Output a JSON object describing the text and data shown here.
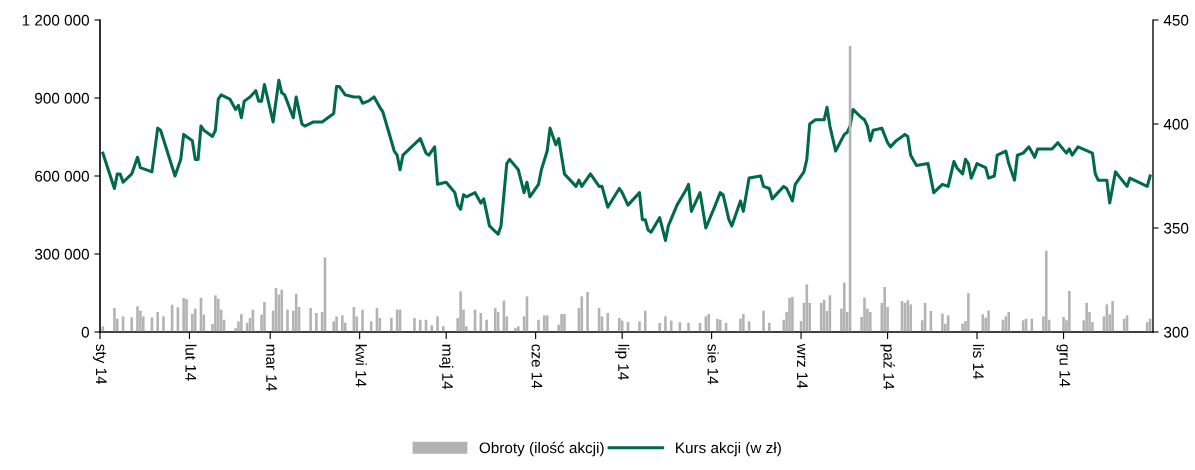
{
  "chart_data": {
    "type": "bar",
    "xlim": [
      "2014-01-01",
      "2015-01-01"
    ],
    "xticks": [
      {
        "value": "2014-01-01",
        "label": "sty 14"
      },
      {
        "value": "2014-02-01",
        "label": "lut 14"
      },
      {
        "value": "2014-03-01",
        "label": "mar 14"
      },
      {
        "value": "2014-04-01",
        "label": "kwi 14"
      },
      {
        "value": "2014-05-01",
        "label": "maj 14"
      },
      {
        "value": "2014-06-01",
        "label": "cze 14"
      },
      {
        "value": "2014-07-01",
        "label": "lip 14"
      },
      {
        "value": "2014-08-01",
        "label": "sie 14"
      },
      {
        "value": "2014-09-01",
        "label": "wrz 14"
      },
      {
        "value": "2014-10-01",
        "label": "paź 14"
      },
      {
        "value": "2014-11-01",
        "label": "lis 14"
      },
      {
        "value": "2014-12-01",
        "label": "gru 14"
      }
    ],
    "ylim": [
      0,
      1200000
    ],
    "yticks": [
      {
        "value": 0,
        "label": "0"
      },
      {
        "value": 300000,
        "label": "300 000"
      },
      {
        "value": 600000,
        "label": "600 000"
      },
      {
        "value": 900000,
        "label": "900 000"
      },
      {
        "value": 1200000,
        "label": "1 200 000"
      }
    ],
    "y2lim": [
      300,
      450
    ],
    "y2ticks": [
      300,
      350,
      400,
      450
    ],
    "legend": "bottom",
    "grid": false,
    "series": [
      {
        "name": "Obroty (ilość akcji)",
        "axis": "y",
        "color": "#b3b3b3",
        "x": [
          "2014-01-02",
          "2014-01-06",
          "2014-01-07",
          "2014-01-09",
          "2014-01-12",
          "2014-01-14",
          "2014-01-15",
          "2014-01-16",
          "2014-01-19",
          "2014-01-21",
          "2014-01-23",
          "2014-01-26",
          "2014-01-28",
          "2014-01-30",
          "2014-01-31",
          "2014-02-02",
          "2014-02-03",
          "2014-02-05",
          "2014-02-06",
          "2014-02-09",
          "2014-02-10",
          "2014-02-11",
          "2014-02-12",
          "2014-02-13",
          "2014-02-17",
          "2014-02-18",
          "2014-02-19",
          "2014-02-21",
          "2014-02-22",
          "2014-02-23",
          "2014-02-26",
          "2014-02-27",
          "2014-03-02",
          "2014-03-03",
          "2014-03-04",
          "2014-03-05",
          "2014-03-07",
          "2014-03-09",
          "2014-03-10",
          "2014-03-11",
          "2014-03-15",
          "2014-03-17",
          "2014-03-19",
          "2014-03-20",
          "2014-03-23",
          "2014-03-24",
          "2014-03-26",
          "2014-03-27",
          "2014-03-30",
          "2014-03-31",
          "2014-04-02",
          "2014-04-05",
          "2014-04-07",
          "2014-04-08",
          "2014-04-12",
          "2014-04-14",
          "2014-04-15",
          "2014-04-20",
          "2014-04-22",
          "2014-04-24",
          "2014-04-26",
          "2014-04-28",
          "2014-04-30",
          "2014-05-05",
          "2014-05-06",
          "2014-05-07",
          "2014-05-08",
          "2014-05-11",
          "2014-05-13",
          "2014-05-15",
          "2014-05-18",
          "2014-05-19",
          "2014-05-21",
          "2014-05-22",
          "2014-05-25",
          "2014-05-26",
          "2014-05-28",
          "2014-05-29",
          "2014-06-02",
          "2014-06-04",
          "2014-06-05",
          "2014-06-09",
          "2014-06-10",
          "2014-06-11",
          "2014-06-16",
          "2014-06-17",
          "2014-06-19",
          "2014-06-23",
          "2014-06-24",
          "2014-06-26",
          "2014-06-30",
          "2014-07-01",
          "2014-07-03",
          "2014-07-07",
          "2014-07-09",
          "2014-07-14",
          "2014-07-16",
          "2014-07-18",
          "2014-07-21",
          "2014-07-24",
          "2014-07-28",
          "2014-07-30",
          "2014-07-31",
          "2014-08-03",
          "2014-08-04",
          "2014-08-06",
          "2014-08-11",
          "2014-08-12",
          "2014-08-14",
          "2014-08-19",
          "2014-08-21",
          "2014-08-26",
          "2014-08-27",
          "2014-08-28",
          "2014-08-29",
          "2014-09-01",
          "2014-09-02",
          "2014-09-03",
          "2014-09-04",
          "2014-09-08",
          "2014-09-09",
          "2014-09-10",
          "2014-09-11",
          "2014-09-15",
          "2014-09-16",
          "2014-09-17",
          "2014-09-18",
          "2014-09-22",
          "2014-09-23",
          "2014-09-24",
          "2014-09-25",
          "2014-09-29",
          "2014-09-30",
          "2014-10-01",
          "2014-10-06",
          "2014-10-07",
          "2014-10-08",
          "2014-10-09",
          "2014-10-13",
          "2014-10-14",
          "2014-10-16",
          "2014-10-20",
          "2014-10-21",
          "2014-10-22",
          "2014-10-27",
          "2014-10-28",
          "2014-10-29",
          "2014-11-03",
          "2014-11-04",
          "2014-11-05",
          "2014-11-10",
          "2014-11-11",
          "2014-11-12",
          "2014-11-17",
          "2014-11-18",
          "2014-11-20",
          "2014-11-24",
          "2014-11-25",
          "2014-11-26",
          "2014-12-01",
          "2014-12-02",
          "2014-12-03",
          "2014-12-08",
          "2014-12-09",
          "2014-12-10",
          "2014-12-11",
          "2014-12-15",
          "2014-12-16",
          "2014-12-17",
          "2014-12-18",
          "2014-12-22",
          "2014-12-23",
          "2014-12-30",
          "2014-12-31"
        ],
        "values": [
          22000,
          92000,
          51000,
          60000,
          56000,
          99000,
          82000,
          60000,
          56000,
          77000,
          60000,
          105000,
          95000,
          131000,
          127000,
          70000,
          90000,
          131000,
          67000,
          31000,
          141000,
          128000,
          86000,
          47000,
          15000,
          41000,
          69000,
          35000,
          54000,
          86000,
          67000,
          115000,
          82000,
          169000,
          144000,
          163000,
          86000,
          82000,
          147000,
          96000,
          92000,
          73000,
          77000,
          287000,
          41000,
          60000,
          64000,
          35000,
          96000,
          60000,
          86000,
          41000,
          92000,
          54000,
          54000,
          86000,
          86000,
          54000,
          47000,
          47000,
          26000,
          60000,
          22000,
          54000,
          156000,
          86000,
          22000,
          86000,
          73000,
          47000,
          92000,
          77000,
          121000,
          60000,
          15000,
          22000,
          60000,
          137000,
          47000,
          64000,
          64000,
          28000,
          69000,
          69000,
          92000,
          137000,
          154000,
          92000,
          60000,
          73000,
          54000,
          44000,
          38000,
          41000,
          82000,
          35000,
          60000,
          44000,
          38000,
          35000,
          35000,
          60000,
          69000,
          51000,
          47000,
          35000,
          51000,
          69000,
          41000,
          82000,
          35000,
          47000,
          77000,
          131000,
          135000,
          42000,
          112000,
          183000,
          112000,
          112000,
          124000,
          81000,
          141000,
          90000,
          190000,
          77000,
          1100000,
          58000,
          132000,
          90000,
          77000,
          112000,
          173000,
          96000,
          119000,
          112000,
          122000,
          106000,
          45000,
          112000,
          81000,
          71000,
          32000,
          64000,
          32000,
          42000,
          150000,
          68000,
          55000,
          83000,
          47000,
          60000,
          77000,
          45000,
          51000,
          51000,
          60000,
          312000,
          47000,
          58000,
          45000,
          158000,
          45000,
          112000,
          77000,
          38000,
          60000,
          106000,
          68000,
          119000,
          51000,
          64000,
          38000,
          51000
        ]
      },
      {
        "name": "Kurs akcji (w zł)",
        "type": "line",
        "axis": "y2",
        "color": "#006b45",
        "line_style": "solid",
        "marker": "none",
        "x": [
          "2014-01-02",
          "2014-01-06",
          "2014-01-07",
          "2014-01-08",
          "2014-01-09",
          "2014-01-12",
          "2014-01-14",
          "2014-01-15",
          "2014-01-19",
          "2014-01-21",
          "2014-01-22",
          "2014-01-27",
          "2014-01-29",
          "2014-01-30",
          "2014-02-02",
          "2014-02-03",
          "2014-02-04",
          "2014-02-05",
          "2014-02-06",
          "2014-02-09",
          "2014-02-10",
          "2014-02-11",
          "2014-02-12",
          "2014-02-15",
          "2014-02-17",
          "2014-02-18",
          "2014-02-19",
          "2014-02-20",
          "2014-02-22",
          "2014-02-24",
          "2014-02-25",
          "2014-02-26",
          "2014-02-27",
          "2014-03-02",
          "2014-03-04",
          "2014-03-05",
          "2014-03-06",
          "2014-03-09",
          "2014-03-10",
          "2014-03-12",
          "2014-03-13",
          "2014-03-16",
          "2014-03-19",
          "2014-03-23",
          "2014-03-24",
          "2014-03-25",
          "2014-03-27",
          "2014-03-30",
          "2014-04-01",
          "2014-04-02",
          "2014-04-04",
          "2014-04-06",
          "2014-04-08",
          "2014-04-09",
          "2014-04-13",
          "2014-04-14",
          "2014-04-15",
          "2014-04-16",
          "2014-04-22",
          "2014-04-24",
          "2014-04-25",
          "2014-04-27",
          "2014-04-28",
          "2014-05-01",
          "2014-05-04",
          "2014-05-05",
          "2014-05-06",
          "2014-05-07",
          "2014-05-08",
          "2014-05-11",
          "2014-05-13",
          "2014-05-14",
          "2014-05-16",
          "2014-05-19",
          "2014-05-20",
          "2014-05-22",
          "2014-05-23",
          "2014-05-26",
          "2014-05-28",
          "2014-05-29",
          "2014-05-30",
          "2014-06-02",
          "2014-06-03",
          "2014-06-05",
          "2014-06-06",
          "2014-06-08",
          "2014-06-09",
          "2014-06-11",
          "2014-06-15",
          "2014-06-16",
          "2014-06-17",
          "2014-06-20",
          "2014-06-23",
          "2014-06-24",
          "2014-06-26",
          "2014-06-30",
          "2014-07-01",
          "2014-07-03",
          "2014-07-07",
          "2014-07-08",
          "2014-07-09",
          "2014-07-10",
          "2014-07-11",
          "2014-07-14",
          "2014-07-16",
          "2014-07-17",
          "2014-07-20",
          "2014-07-23",
          "2014-07-24",
          "2014-07-25",
          "2014-07-28",
          "2014-07-30",
          "2014-08-02",
          "2014-08-04",
          "2014-08-05",
          "2014-08-07",
          "2014-08-08",
          "2014-08-11",
          "2014-08-12",
          "2014-08-14",
          "2014-08-18",
          "2014-08-19",
          "2014-08-21",
          "2014-08-22",
          "2014-08-26",
          "2014-08-27",
          "2014-08-29",
          "2014-08-30",
          "2014-09-02",
          "2014-09-03",
          "2014-09-04",
          "2014-09-06",
          "2014-09-09",
          "2014-09-10",
          "2014-09-11",
          "2014-09-13",
          "2014-09-16",
          "2014-09-17",
          "2014-09-18",
          "2014-09-19",
          "2014-09-22",
          "2014-09-23",
          "2014-09-24",
          "2014-09-25",
          "2014-09-26",
          "2014-09-29",
          "2014-10-01",
          "2014-10-02",
          "2014-10-04",
          "2014-10-07",
          "2014-10-08",
          "2014-10-09",
          "2014-10-11",
          "2014-10-15",
          "2014-10-17",
          "2014-10-20",
          "2014-10-22",
          "2014-10-24",
          "2014-10-25",
          "2014-10-27",
          "2014-10-28",
          "2014-10-29",
          "2014-10-30",
          "2014-11-01",
          "2014-11-04",
          "2014-11-05",
          "2014-11-07",
          "2014-11-08",
          "2014-11-11",
          "2014-11-12",
          "2014-11-14",
          "2014-11-15",
          "2014-11-17",
          "2014-11-19",
          "2014-11-21",
          "2014-11-22",
          "2014-11-27",
          "2014-11-29",
          "2014-12-02",
          "2014-12-03",
          "2014-12-04",
          "2014-12-06",
          "2014-12-11",
          "2014-12-12",
          "2014-12-13",
          "2014-12-16",
          "2014-12-17",
          "2014-12-19",
          "2014-12-23",
          "2014-12-24",
          "2014-12-30",
          "2014-12-31"
        ],
        "values": [
          386,
          369,
          376,
          376,
          372,
          376,
          384,
          379,
          377,
          398,
          397,
          375,
          383,
          395,
          392,
          383,
          383,
          399,
          397,
          394,
          397,
          412,
          414,
          412,
          407,
          409,
          403,
          411,
          413,
          416,
          411,
          411,
          419,
          401,
          421,
          415,
          414,
          403,
          413,
          400,
          399,
          401,
          401,
          405,
          418,
          418,
          414,
          413,
          413,
          410,
          411,
          413,
          408,
          406,
          387,
          385,
          378,
          385,
          393,
          386,
          385,
          389,
          371,
          372,
          367,
          361,
          359,
          366,
          365,
          367,
          362,
          364,
          351,
          347,
          351,
          381,
          383,
          378,
          367,
          372,
          365,
          371,
          378,
          387,
          398,
          390,
          393,
          376,
          370,
          373,
          370,
          376,
          370,
          370,
          360,
          369,
          367,
          361,
          367,
          354,
          354,
          349,
          348,
          355,
          344,
          351,
          361,
          368,
          371,
          358,
          367,
          350,
          360,
          367,
          366,
          354,
          351,
          363,
          358,
          374,
          375,
          370,
          369,
          364,
          370,
          369,
          363,
          371,
          377,
          383,
          400,
          402,
          402,
          408,
          399,
          387,
          395,
          396,
          399,
          407,
          403,
          402,
          399,
          392,
          397,
          398,
          391,
          389,
          392,
          395,
          394,
          385,
          380,
          381,
          367,
          371,
          370,
          382,
          379,
          376,
          383,
          381,
          374,
          381,
          379,
          374,
          375,
          385,
          387,
          381,
          373,
          385,
          386,
          389,
          384,
          388,
          388,
          391,
          386,
          388,
          385,
          389,
          386,
          376,
          373,
          373,
          362,
          377,
          370,
          374,
          370,
          375
        ]
      }
    ]
  }
}
